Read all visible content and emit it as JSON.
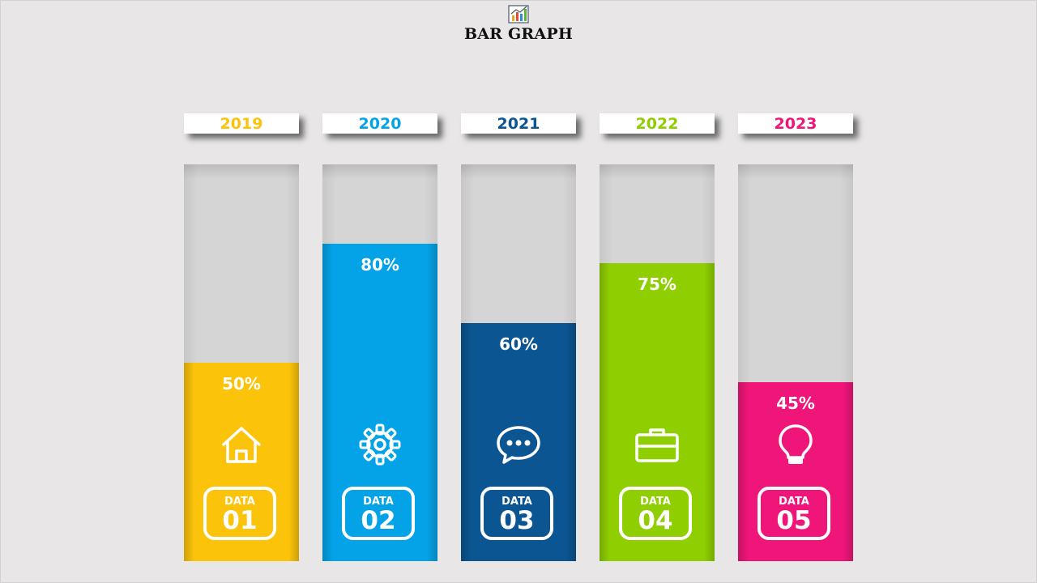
{
  "title": "BAR GRAPH",
  "icons": {
    "title": "chart-icon"
  },
  "chart_data": {
    "type": "bar",
    "ylim": [
      0,
      100
    ],
    "categories": [
      "2019",
      "2020",
      "2021",
      "2022",
      "2023"
    ],
    "values": [
      50,
      80,
      60,
      75,
      45
    ],
    "value_labels": [
      "50%",
      "80%",
      "60%",
      "75%",
      "45%"
    ],
    "badges": [
      {
        "label": "DATA",
        "number": "01",
        "icon": "home-icon"
      },
      {
        "label": "DATA",
        "number": "02",
        "icon": "gear-icon"
      },
      {
        "label": "DATA",
        "number": "03",
        "icon": "chat-bubble-icon"
      },
      {
        "label": "DATA",
        "number": "04",
        "icon": "briefcase-icon"
      },
      {
        "label": "DATA",
        "number": "05",
        "icon": "lightbulb-icon"
      }
    ],
    "colors": [
      "#fcc30b",
      "#04a3e8",
      "#0b5592",
      "#8fcf02",
      "#f01579"
    ]
  }
}
